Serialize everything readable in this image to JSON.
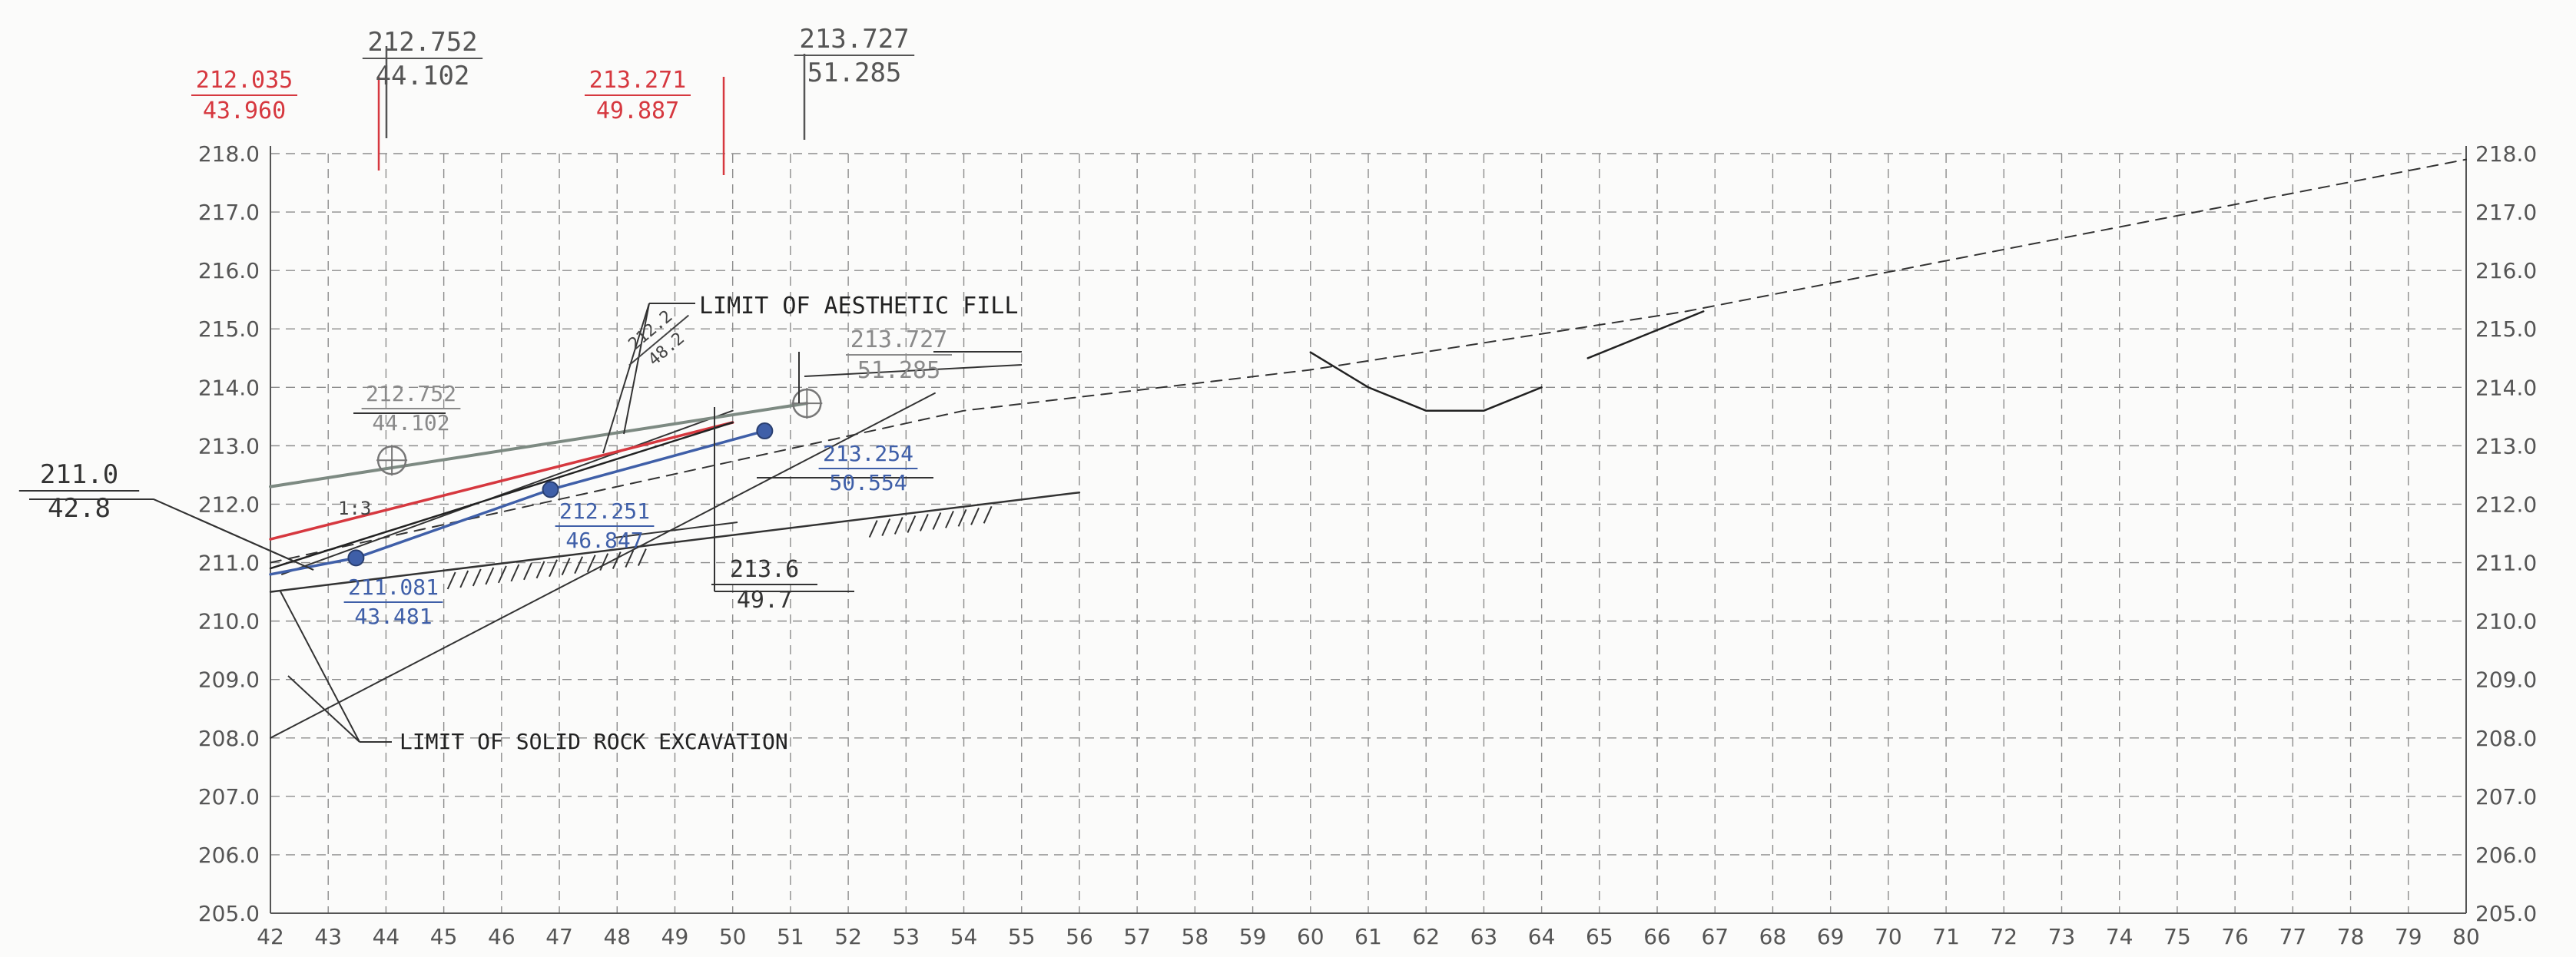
{
  "chart_data": {
    "type": "line",
    "title": "",
    "xlabel": "",
    "ylabel": "",
    "xlim": [
      42,
      80
    ],
    "ylim": [
      205.0,
      218.0
    ],
    "x_ticks": [
      "42",
      "43",
      "44",
      "45",
      "46",
      "47",
      "48",
      "49",
      "50",
      "51",
      "52",
      "53",
      "54",
      "55",
      "56",
      "57",
      "58",
      "59",
      "60",
      "61",
      "62",
      "63",
      "64",
      "65",
      "66",
      "67",
      "68",
      "69",
      "70",
      "71",
      "72",
      "73",
      "74",
      "75",
      "76",
      "77",
      "78",
      "79",
      "80"
    ],
    "y_ticks": [
      "205.0",
      "206.0",
      "207.0",
      "208.0",
      "209.0",
      "210.0",
      "211.0",
      "212.0",
      "213.0",
      "214.0",
      "215.0",
      "216.0",
      "217.0",
      "218.0"
    ],
    "grid": true,
    "series": [
      {
        "key": "existing-ground",
        "color": "#333333",
        "dash": "14 10",
        "width": 2,
        "x": [
          42,
          54,
          60,
          66.5,
          80
        ],
        "y": [
          211.0,
          213.6,
          214.3,
          215.3,
          217.9
        ]
      },
      {
        "key": "ditch",
        "color": "#222222",
        "dash": "",
        "width": 2.5,
        "x": [
          60,
          61,
          62,
          63,
          64
        ],
        "y": [
          214.6,
          214.0,
          213.6,
          213.6,
          214.0
        ]
      },
      {
        "key": "ditch-right",
        "color": "#222222",
        "dash": "",
        "width": 2.5,
        "x": [
          64.8,
          66.8
        ],
        "y": [
          214.5,
          215.3
        ]
      },
      {
        "key": "rock-line",
        "color": "#333333",
        "dash": "",
        "width": 2.5,
        "x": [
          42,
          56
        ],
        "y": [
          210.5,
          212.2
        ]
      },
      {
        "key": "rock-line-upper",
        "color": "#333333",
        "dash": "",
        "width": 2,
        "x": [
          42.2,
          50
        ],
        "y": [
          210.8,
          213.6
        ]
      },
      {
        "key": "excavation-line",
        "color": "#333333",
        "dash": "",
        "width": 2,
        "x": [
          42,
          53.5
        ],
        "y": [
          208.0,
          213.9
        ]
      },
      {
        "key": "grey-finish-grade",
        "color": "#7d8a82",
        "dash": "",
        "width": 4,
        "x": [
          42,
          51.285
        ],
        "y": [
          212.3,
          213.727
        ]
      },
      {
        "key": "red-design",
        "color": "#d6383f",
        "dash": "",
        "width": 3.5,
        "x": [
          42,
          50
        ],
        "y": [
          211.4,
          213.4
        ]
      },
      {
        "key": "blue-finished-grade",
        "color": "#3f5fa8",
        "dash": "",
        "width": 3.5,
        "x": [
          42,
          43.481,
          46.847,
          50.554
        ],
        "y": [
          210.8,
          211.081,
          212.251,
          213.254
        ]
      },
      {
        "key": "black-slope",
        "color": "#222222",
        "dash": "",
        "width": 2.5,
        "x": [
          42,
          50
        ],
        "y": [
          210.9,
          213.4
        ]
      }
    ],
    "points": [
      {
        "x": 43.481,
        "y": 211.081,
        "color": "#3f5fa8"
      },
      {
        "x": 46.847,
        "y": 212.251,
        "color": "#3f5fa8"
      },
      {
        "x": 50.554,
        "y": 213.254,
        "color": "#3f5fa8"
      }
    ],
    "annotations": [
      {
        "key": "red-1",
        "top": "212.035",
        "bottom": "43.960",
        "color": "#d6383f"
      },
      {
        "key": "grey-1",
        "top": "212.752",
        "bottom": "44.102",
        "color": "#555555"
      },
      {
        "key": "red-2",
        "top": "213.271",
        "bottom": "49.887",
        "color": "#d6383f"
      },
      {
        "key": "grey-2",
        "top": "213.727",
        "bottom": "51.285",
        "color": "#555555"
      },
      {
        "key": "left-call",
        "top": "211.0",
        "bottom": "42.8",
        "color": "#333333"
      },
      {
        "key": "grey-in-1",
        "top": "212.752",
        "bottom": "44.102",
        "color": "#8a8a8a"
      },
      {
        "key": "grey-in-2",
        "top": "213.727",
        "bottom": "51.285",
        "color": "#8a8a8a"
      },
      {
        "key": "blue-1",
        "top": "211.081",
        "bottom": "43.481",
        "color": "#3f5fa8"
      },
      {
        "key": "blue-2",
        "top": "212.251",
        "bottom": "46.847",
        "color": "#3f5fa8"
      },
      {
        "key": "blue-3",
        "top": "213.254",
        "bottom": "50.554",
        "color": "#3f5fa8"
      },
      {
        "key": "black-1",
        "top": "213.6",
        "bottom": "49.7",
        "color": "#333333"
      },
      {
        "key": "slope-note",
        "top": "212.2",
        "bottom": "48.2",
        "color": "#444444"
      }
    ],
    "notes": {
      "aesthetic_fill": "LIMIT OF AESTHETIC FILL",
      "rock_excavation": "LIMIT OF SOLID ROCK EXCAVATION",
      "small_mark": "1:3"
    }
  }
}
